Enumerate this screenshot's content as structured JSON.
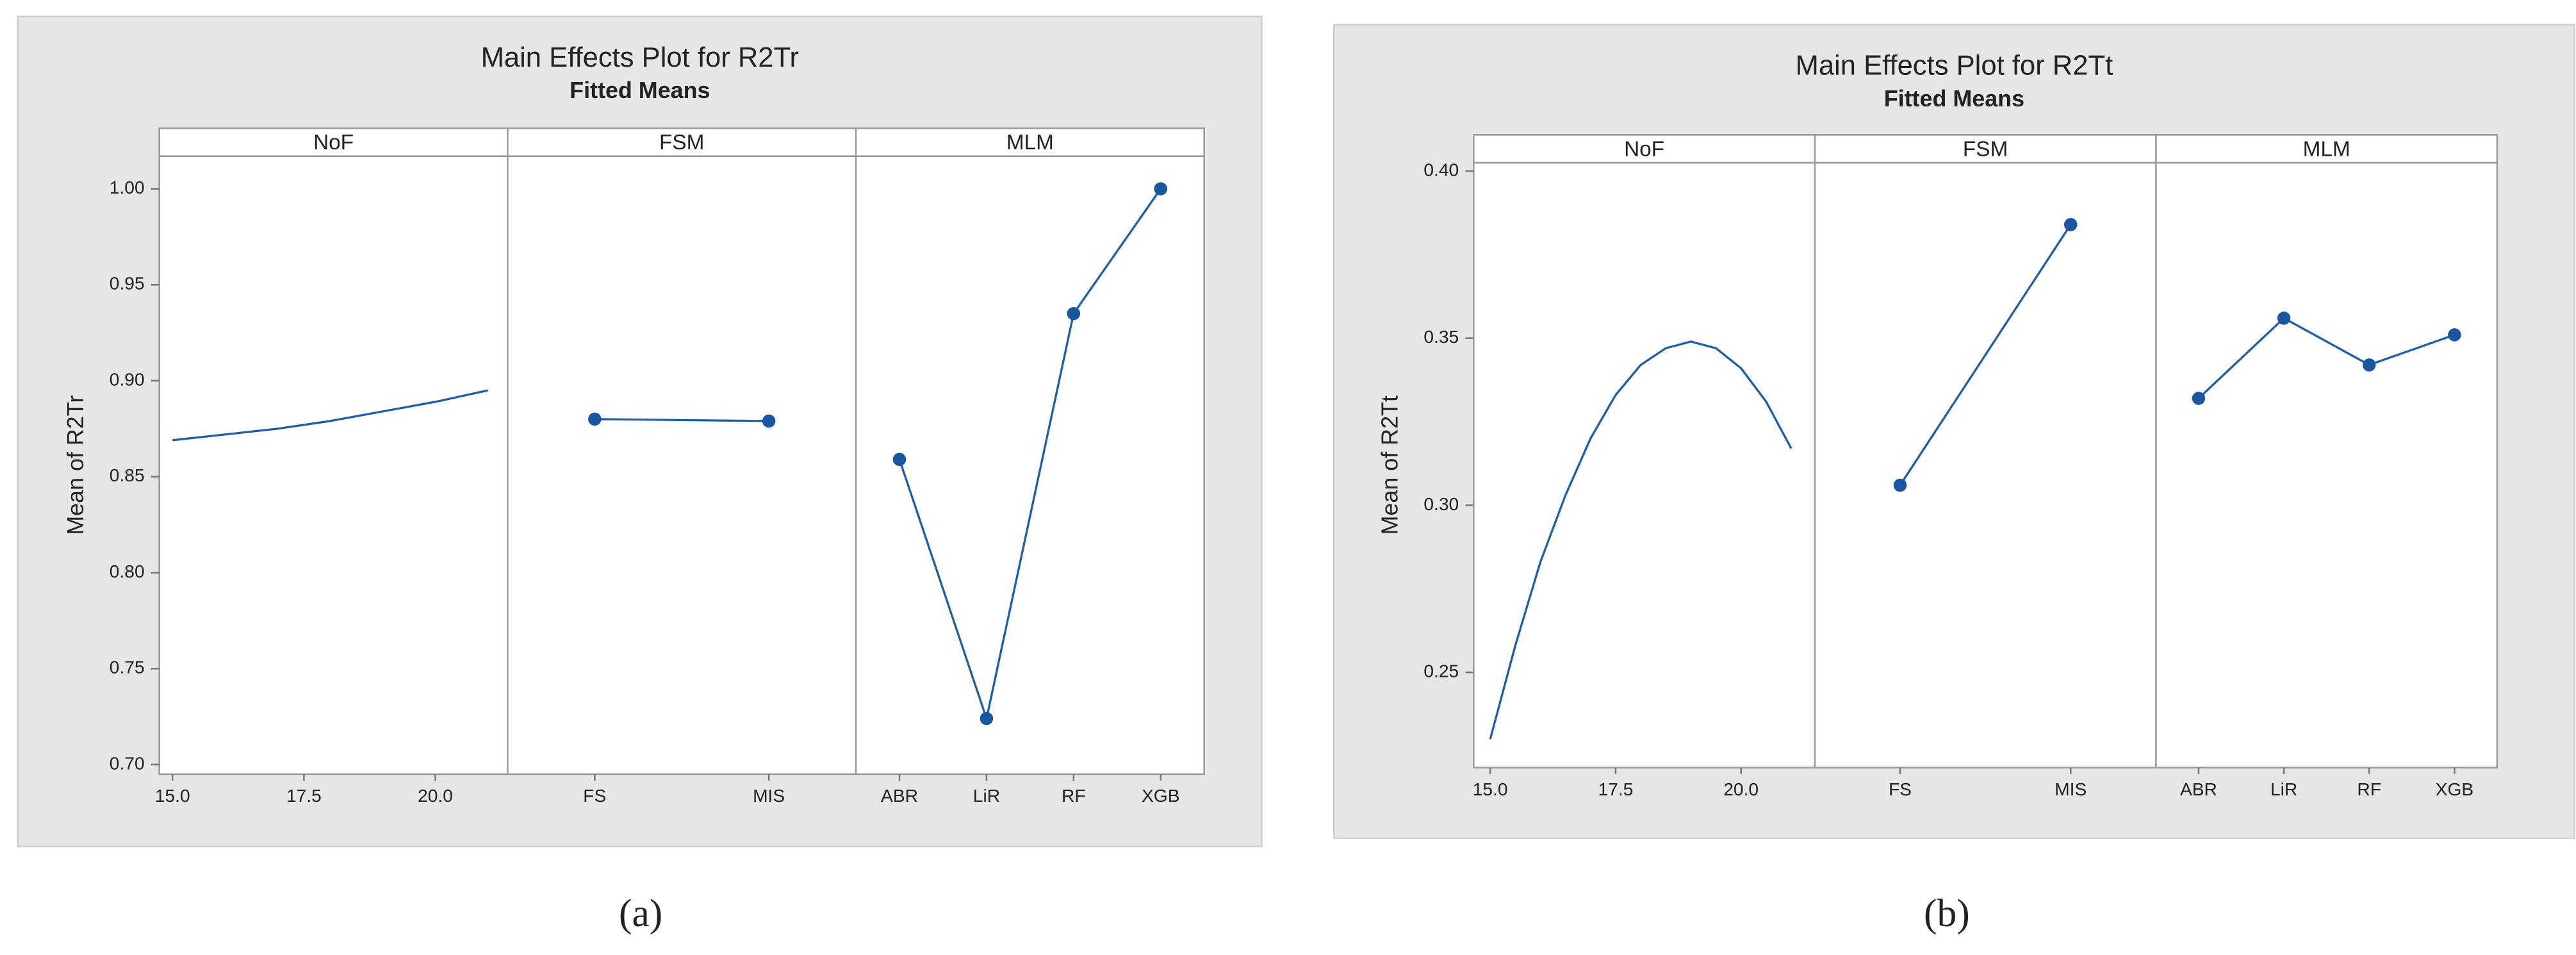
{
  "chart_data": [
    {
      "type": "line",
      "title": "Main Effects Plot for R2Tr",
      "subtitle": "Fitted Means",
      "ylabel": "Mean of R2Tr",
      "caption": "(a)",
      "color": "#1f5fa8",
      "ylim": [
        0.695,
        1.017
      ],
      "yticks": [
        {
          "value": 0.7,
          "label": "0.70"
        },
        {
          "value": 0.75,
          "label": "0.75"
        },
        {
          "value": 0.8,
          "label": "0.80"
        },
        {
          "value": 0.85,
          "label": "0.85"
        },
        {
          "value": 0.9,
          "label": "0.90"
        },
        {
          "value": 0.95,
          "label": "0.95"
        },
        {
          "value": 1.0,
          "label": "1.00"
        }
      ],
      "panels": [
        {
          "name": "NoF",
          "x": [
            15,
            16,
            17,
            18,
            19,
            20,
            21
          ],
          "values": [
            0.869,
            0.872,
            0.875,
            0.879,
            0.884,
            0.889,
            0.895
          ],
          "xlim": [
            14.75,
            21.375
          ],
          "xticks": [
            {
              "value": 15,
              "label": "15.0"
            },
            {
              "value": 17.5,
              "label": "17.5"
            },
            {
              "value": 20,
              "label": "20.0"
            }
          ]
        },
        {
          "name": "FSM",
          "categories": [
            "FS",
            "MIS"
          ],
          "values": [
            0.88,
            0.879
          ]
        },
        {
          "name": "MLM",
          "categories": [
            "ABR",
            "LiR",
            "RF",
            "XGB"
          ],
          "values": [
            0.859,
            0.724,
            0.935,
            1.0
          ]
        }
      ]
    },
    {
      "type": "line",
      "title": "Main Effects Plot for R2Tt",
      "subtitle": "Fitted Means",
      "ylabel": "Mean of R2Tt",
      "caption": "(b)",
      "color": "#1f5fa8",
      "ylim": [
        0.2215,
        0.4025
      ],
      "yticks": [
        {
          "value": 0.25,
          "label": "0.25"
        },
        {
          "value": 0.3,
          "label": "0.30"
        },
        {
          "value": 0.35,
          "label": "0.35"
        },
        {
          "value": 0.4,
          "label": "0.40"
        }
      ],
      "panels": [
        {
          "name": "NoF",
          "x": [
            15,
            15.5,
            16,
            16.5,
            17,
            17.5,
            18,
            18.5,
            19,
            19.5,
            20,
            20.5,
            21
          ],
          "values": [
            0.23,
            0.258,
            0.283,
            0.303,
            0.32,
            0.333,
            0.342,
            0.347,
            0.349,
            0.347,
            0.341,
            0.331,
            0.317
          ],
          "xlim": [
            14.67,
            21.47
          ],
          "xticks": [
            {
              "value": 15,
              "label": "15.0"
            },
            {
              "value": 17.5,
              "label": "17.5"
            },
            {
              "value": 20,
              "label": "20.0"
            }
          ]
        },
        {
          "name": "FSM",
          "categories": [
            "FS",
            "MIS"
          ],
          "values": [
            0.306,
            0.384
          ]
        },
        {
          "name": "MLM",
          "categories": [
            "ABR",
            "LiR",
            "RF",
            "XGB"
          ],
          "values": [
            0.332,
            0.356,
            0.342,
            0.351
          ]
        }
      ]
    }
  ]
}
